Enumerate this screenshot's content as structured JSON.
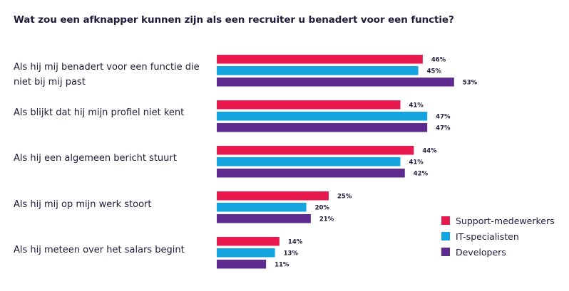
{
  "chart_data": {
    "type": "bar",
    "orientation": "horizontal",
    "title": "Wat zou een afknapper kunnen zijn als een recruiter u benadert voor een functie?",
    "categories": [
      "Als hij mij benadert voor een functie die niet bij mij past",
      "Als blijkt dat hij mijn profiel niet kent",
      "Als hij een algemeen bericht stuurt",
      "Als hij mij op mijn werk stoort",
      "Als hij meteen over het salars begint"
    ],
    "series": [
      {
        "name": "Support-medewerkers",
        "color": "#e8194f",
        "values": [
          46,
          41,
          44,
          25,
          14
        ]
      },
      {
        "name": "IT-specialisten",
        "color": "#14a5e0",
        "values": [
          45,
          47,
          41,
          20,
          13
        ]
      },
      {
        "name": "Developers",
        "color": "#5e2a8f",
        "values": [
          53,
          47,
          42,
          21,
          11
        ]
      }
    ],
    "value_suffix": "%",
    "xlim": [
      0,
      100
    ],
    "grid": false,
    "legend_position": "bottom-right"
  }
}
